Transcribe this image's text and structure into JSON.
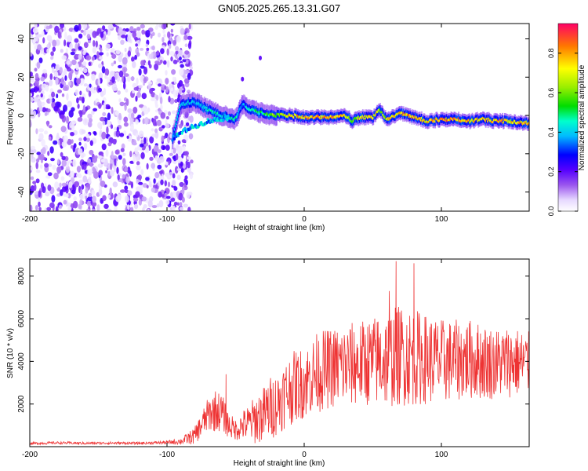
{
  "title": "GN05.2025.265.13.31.G07",
  "chart_data": [
    {
      "type": "heatmap",
      "title": "GN05.2025.265.13.31.G07",
      "xlabel": "Height of straight line (km)",
      "ylabel": "Frequency (Hz)",
      "xlim": [
        -200,
        164
      ],
      "ylim": [
        -50,
        48
      ],
      "xticks": [
        -200,
        -100,
        0,
        100
      ],
      "yticks": [
        -40,
        -20,
        0,
        20,
        40
      ],
      "colorbar": {
        "label": "Normalized spectral amplitude",
        "range": [
          0,
          0.95
        ],
        "ticks": [
          0.0,
          0.2,
          0.4,
          0.6,
          0.8
        ]
      },
      "noise_region": {
        "x_range": [
          -200,
          -88
        ],
        "freq_range": [
          -50,
          48
        ],
        "typical_amplitude": 0.15
      },
      "ridge": {
        "x": [
          -96,
          -90,
          -80,
          -70,
          -60,
          -50,
          -45,
          -40,
          -30,
          -20,
          -10,
          0,
          10,
          20,
          30,
          35,
          40,
          50,
          55,
          60,
          70,
          80,
          90,
          100,
          110,
          120,
          130,
          140,
          150,
          160,
          164
        ],
        "freq": [
          -12,
          6,
          7,
          3,
          0,
          -2,
          6,
          3,
          1,
          0,
          0,
          -1,
          -1,
          -1,
          0,
          -3,
          -1,
          -1,
          3,
          -2,
          1,
          -1,
          -3,
          -2,
          -2,
          -3,
          -2,
          -3,
          -3,
          -4,
          -4
        ],
        "amplitude": [
          0.45,
          0.5,
          0.45,
          0.5,
          0.5,
          0.55,
          0.4,
          0.55,
          0.55,
          0.75,
          0.85,
          0.9,
          0.9,
          0.9,
          0.85,
          0.6,
          0.85,
          0.85,
          0.7,
          0.8,
          0.9,
          0.9,
          0.85,
          0.9,
          0.9,
          0.85,
          0.9,
          0.9,
          0.9,
          0.9,
          0.9
        ]
      },
      "outliers": [
        {
          "x": -45,
          "freq": 19,
          "amplitude": 0.2
        },
        {
          "x": -32,
          "freq": 30,
          "amplitude": 0.2
        }
      ]
    },
    {
      "type": "line",
      "title": "",
      "xlabel": "Height of straight line (km)",
      "ylabel": "SNR (10 * v/v)",
      "xlim": [
        -200,
        164
      ],
      "ylim": [
        0,
        8800
      ],
      "xticks": [
        -200,
        -100,
        0,
        100
      ],
      "yticks": [
        2000,
        4000,
        6000,
        8000
      ],
      "color": "#ee3333",
      "series": [
        {
          "name": "SNR",
          "x": [
            -200,
            -180,
            -160,
            -140,
            -120,
            -100,
            -90,
            -80,
            -75,
            -70,
            -65,
            -60,
            -55,
            -50,
            -45,
            -40,
            -35,
            -30,
            -25,
            -20,
            -15,
            -10,
            -5,
            0,
            10,
            20,
            30,
            40,
            50,
            60,
            70,
            80,
            90,
            100,
            110,
            120,
            130,
            140,
            150,
            164
          ],
          "mean": [
            150,
            180,
            160,
            170,
            160,
            200,
            250,
            500,
            1000,
            1500,
            1700,
            1600,
            1000,
            800,
            1000,
            1100,
            1300,
            1500,
            1800,
            2000,
            2400,
            2700,
            2900,
            3000,
            3500,
            3700,
            3800,
            3900,
            4000,
            4100,
            4300,
            4200,
            4100,
            4000,
            4050,
            4100,
            4000,
            3900,
            4000,
            3900
          ],
          "spread": [
            60,
            60,
            60,
            60,
            60,
            80,
            150,
            400,
            600,
            800,
            1000,
            900,
            600,
            500,
            700,
            900,
            1200,
            1300,
            1500,
            1500,
            1600,
            1700,
            1700,
            1700,
            1900,
            1900,
            2000,
            2000,
            2100,
            2300,
            2400,
            2300,
            2100,
            2000,
            1900,
            1900,
            1800,
            1700,
            1700,
            1500
          ],
          "peaks": [
            {
              "x": -57,
              "y": 3400
            },
            {
              "x": 67,
              "y": 8700
            },
            {
              "x": 80,
              "y": 8600
            },
            {
              "x": 62,
              "y": 7300
            }
          ]
        }
      ]
    }
  ]
}
